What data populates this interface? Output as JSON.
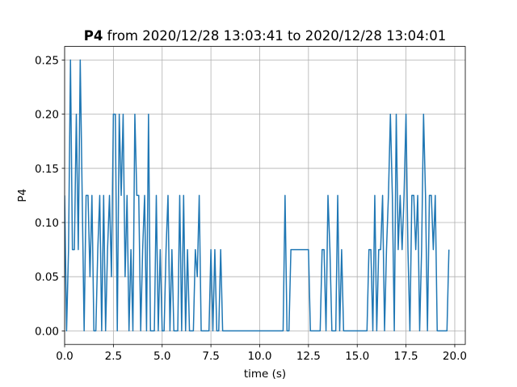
{
  "chart_data": {
    "type": "line",
    "title_bold": "P4",
    "title": "from 2020/12/28 13:03:41 to 2020/12/28 13:04:01",
    "xlabel": "time (s)",
    "ylabel": "P4",
    "x": [
      0,
      0.1,
      0.2,
      0.3,
      0.4,
      0.5,
      0.6,
      0.7,
      0.8,
      0.9,
      1,
      1.1,
      1.2,
      1.3,
      1.4,
      1.5,
      1.6,
      1.7,
      1.8,
      1.9,
      2,
      2.1,
      2.2,
      2.3,
      2.4,
      2.5,
      2.6,
      2.7,
      2.8,
      2.9,
      3,
      3.1,
      3.2,
      3.3,
      3.4,
      3.5,
      3.6,
      3.7,
      3.8,
      3.9,
      4,
      4.1,
      4.2,
      4.3,
      4.4,
      4.5,
      4.6,
      4.7,
      4.8,
      4.9,
      5,
      5.1,
      5.2,
      5.3,
      5.4,
      5.5,
      5.6,
      5.7,
      5.8,
      5.9,
      6,
      6.1,
      6.2,
      6.3,
      6.4,
      6.5,
      6.6,
      6.7,
      6.8,
      6.9,
      7,
      7.1,
      7.2,
      7.3,
      7.4,
      7.5,
      7.6,
      7.7,
      7.8,
      7.9,
      8,
      8.1,
      8.2,
      8.3,
      8.4,
      8.5,
      8.6,
      8.7,
      8.8,
      8.9,
      9,
      9.1,
      9.2,
      9.3,
      9.4,
      9.5,
      9.6,
      9.7,
      9.8,
      9.9,
      10,
      10.1,
      10.2,
      10.3,
      10.4,
      10.5,
      10.6,
      10.7,
      10.8,
      10.9,
      11,
      11.1,
      11.2,
      11.3,
      11.4,
      11.5,
      11.6,
      11.7,
      11.8,
      11.9,
      12,
      12.1,
      12.2,
      12.3,
      12.4,
      12.5,
      12.6,
      12.7,
      12.8,
      12.9,
      13,
      13.1,
      13.2,
      13.3,
      13.4,
      13.5,
      13.6,
      13.7,
      13.8,
      13.9,
      14,
      14.1,
      14.2,
      14.3,
      14.4,
      14.5,
      14.6,
      14.7,
      14.8,
      14.9,
      15,
      15.1,
      15.2,
      15.3,
      15.4,
      15.5,
      15.6,
      15.7,
      15.8,
      15.9,
      16,
      16.1,
      16.2,
      16.3,
      16.4,
      16.5,
      16.6,
      16.7,
      16.8,
      16.9,
      17,
      17.1,
      17.2,
      17.3,
      17.4,
      17.5,
      17.6,
      17.7,
      17.8,
      17.9,
      18,
      18.1,
      18.2,
      18.3,
      18.4,
      18.5,
      18.6,
      18.7,
      18.8,
      18.9,
      19,
      19.1,
      19.2,
      19.3,
      19.4,
      19.5,
      19.6,
      19.7
    ],
    "series": [
      {
        "name": "P4",
        "color": "#1f77b4",
        "values": [
          0.125,
          0,
          0.075,
          0.25,
          0.075,
          0.075,
          0.2,
          0.075,
          0.25,
          0.125,
          0,
          0.125,
          0.125,
          0.05,
          0.125,
          0,
          0,
          0.075,
          0.125,
          0,
          0.125,
          0,
          0.075,
          0.125,
          0.05,
          0.2,
          0.2,
          0,
          0.2,
          0.125,
          0.2,
          0.05,
          0.125,
          0,
          0.075,
          0,
          0.2,
          0.125,
          0.125,
          0,
          0.075,
          0.125,
          0,
          0.2,
          0,
          0,
          0,
          0.125,
          0,
          0.075,
          0,
          0,
          0.075,
          0.125,
          0,
          0.075,
          0,
          0,
          0,
          0.125,
          0,
          0.125,
          0,
          0.075,
          0,
          0,
          0,
          0.075,
          0.05,
          0.125,
          0,
          0,
          0,
          0,
          0,
          0.075,
          0,
          0.075,
          0,
          0,
          0.075,
          0,
          0,
          0,
          0,
          0,
          0,
          0,
          0,
          0,
          0,
          0,
          0,
          0,
          0,
          0,
          0,
          0,
          0,
          0,
          0,
          0,
          0,
          0,
          0,
          0,
          0,
          0,
          0,
          0,
          0,
          0,
          0,
          0.125,
          0,
          0,
          0.075,
          0.075,
          0.075,
          0.075,
          0.075,
          0.075,
          0.075,
          0.075,
          0.075,
          0.075,
          0,
          0,
          0,
          0,
          0,
          0,
          0.075,
          0.075,
          0,
          0.125,
          0.075,
          0,
          0,
          0,
          0.125,
          0,
          0.075,
          0,
          0,
          0,
          0,
          0,
          0,
          0,
          0,
          0,
          0,
          0,
          0,
          0,
          0.075,
          0.075,
          0,
          0.125,
          0,
          0.075,
          0.075,
          0.125,
          0,
          0.075,
          0.125,
          0.2,
          0.125,
          0,
          0.2,
          0.075,
          0.125,
          0.075,
          0.125,
          0.2,
          0.075,
          0,
          0.125,
          0.125,
          0.075,
          0.125,
          0,
          0.075,
          0.2,
          0.125,
          0,
          0.125,
          0.125,
          0.075,
          0.125,
          0,
          0,
          0,
          0,
          0,
          0,
          0.075
        ]
      }
    ],
    "xlim": [
      0,
      20.54
    ],
    "ylim": [
      -0.0125,
      0.2625
    ],
    "xticks": [
      {
        "value": 0,
        "label": "0.0"
      },
      2.5,
      {
        "value": 5,
        "label": "5.0"
      },
      7.5,
      {
        "value": 10,
        "label": "10.0"
      },
      12.5,
      {
        "value": 15,
        "label": "15.0"
      },
      17.5,
      {
        "value": 20,
        "label": "20.0"
      }
    ],
    "yticks": [
      {
        "value": 0,
        "label": "0.00"
      },
      0.05,
      {
        "value": 0.1,
        "label": "0.10"
      },
      0.15,
      {
        "value": 0.2,
        "label": "0.20"
      },
      0.25
    ],
    "grid": true
  }
}
